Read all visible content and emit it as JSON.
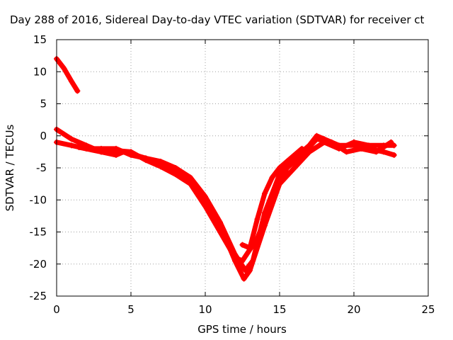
{
  "chart_data": {
    "type": "line",
    "title": "Day 288 of 2016, Sidereal Day-to-day VTEC variation (SDTVAR) for receiver ct",
    "xlabel": "GPS time / hours",
    "ylabel": "SDTVAR / TECUs",
    "xlim": [
      0,
      25
    ],
    "ylim": [
      -25,
      15
    ],
    "xticks": [
      0,
      5,
      10,
      15,
      20,
      25
    ],
    "yticks": [
      -25,
      -20,
      -15,
      -10,
      -5,
      0,
      5,
      10,
      15
    ],
    "grid": true,
    "color": "#ff0000",
    "series": [
      {
        "name": "track-1",
        "points": [
          [
            0.0,
            12.0
          ],
          [
            0.5,
            10.5
          ],
          [
            1.0,
            8.5
          ],
          [
            1.4,
            7.0
          ]
        ]
      },
      {
        "name": "track-2",
        "points": [
          [
            0.0,
            1.0
          ],
          [
            1.0,
            -0.5
          ],
          [
            2.0,
            -1.5
          ],
          [
            3.0,
            -2.5
          ],
          [
            4.0,
            -3.0
          ],
          [
            4.5,
            -2.5
          ],
          [
            5.0,
            -2.8
          ],
          [
            6.0,
            -3.5
          ],
          [
            7.0,
            -4.0
          ],
          [
            8.0,
            -5.0
          ],
          [
            9.0,
            -6.5
          ],
          [
            10.0,
            -9.5
          ],
          [
            11.0,
            -13.5
          ],
          [
            12.0,
            -18.5
          ],
          [
            12.7,
            -21.0
          ],
          [
            13.2,
            -19.5
          ],
          [
            14.0,
            -12.0
          ],
          [
            15.0,
            -6.0
          ],
          [
            16.0,
            -3.5
          ],
          [
            17.0,
            -1.5
          ],
          [
            17.5,
            0.0
          ],
          [
            18.0,
            -0.5
          ],
          [
            19.0,
            -1.5
          ],
          [
            20.0,
            -1.5
          ],
          [
            21.0,
            -2.0
          ],
          [
            22.0,
            -2.5
          ],
          [
            22.7,
            -3.0
          ]
        ]
      },
      {
        "name": "track-3",
        "points": [
          [
            0.0,
            -1.0
          ],
          [
            1.0,
            -1.5
          ],
          [
            2.0,
            -2.0
          ],
          [
            3.0,
            -2.0
          ],
          [
            4.0,
            -2.0
          ],
          [
            5.0,
            -3.0
          ],
          [
            6.0,
            -3.5
          ],
          [
            7.0,
            -4.5
          ],
          [
            8.0,
            -5.5
          ],
          [
            9.0,
            -7.0
          ],
          [
            10.0,
            -10.0
          ],
          [
            11.0,
            -14.0
          ],
          [
            12.0,
            -19.5
          ],
          [
            12.6,
            -22.3
          ],
          [
            13.0,
            -21.0
          ],
          [
            14.0,
            -14.0
          ],
          [
            15.0,
            -7.5
          ],
          [
            16.0,
            -5.0
          ],
          [
            17.0,
            -2.5
          ],
          [
            18.0,
            -1.0
          ],
          [
            19.0,
            -2.0
          ],
          [
            20.0,
            -1.0
          ],
          [
            21.0,
            -1.5
          ],
          [
            22.0,
            -1.5
          ],
          [
            22.7,
            -1.5
          ]
        ]
      },
      {
        "name": "track-4",
        "points": [
          [
            1.5,
            -1.8
          ],
          [
            3.0,
            -2.5
          ],
          [
            4.0,
            -2.3
          ],
          [
            5.0,
            -2.5
          ],
          [
            6.0,
            -3.8
          ],
          [
            7.0,
            -4.8
          ],
          [
            8.0,
            -6.0
          ],
          [
            9.0,
            -7.5
          ],
          [
            10.0,
            -11.0
          ],
          [
            11.0,
            -15.0
          ],
          [
            12.0,
            -19.0
          ],
          [
            12.5,
            -19.5
          ],
          [
            13.5,
            -16.0
          ],
          [
            14.5,
            -10.0
          ],
          [
            15.5,
            -5.0
          ],
          [
            16.5,
            -3.0
          ],
          [
            17.5,
            -0.5
          ],
          [
            18.5,
            -1.0
          ],
          [
            19.5,
            -2.5
          ],
          [
            20.5,
            -2.0
          ],
          [
            21.5,
            -2.5
          ],
          [
            22.5,
            -1.0
          ]
        ]
      },
      {
        "name": "track-5",
        "points": [
          [
            12.5,
            -17.0
          ],
          [
            13.0,
            -17.5
          ],
          [
            13.5,
            -13.0
          ],
          [
            14.0,
            -9.0
          ],
          [
            14.5,
            -6.5
          ],
          [
            15.0,
            -5.0
          ],
          [
            15.5,
            -4.0
          ],
          [
            16.0,
            -3.0
          ],
          [
            16.5,
            -2.0
          ]
        ]
      }
    ]
  }
}
